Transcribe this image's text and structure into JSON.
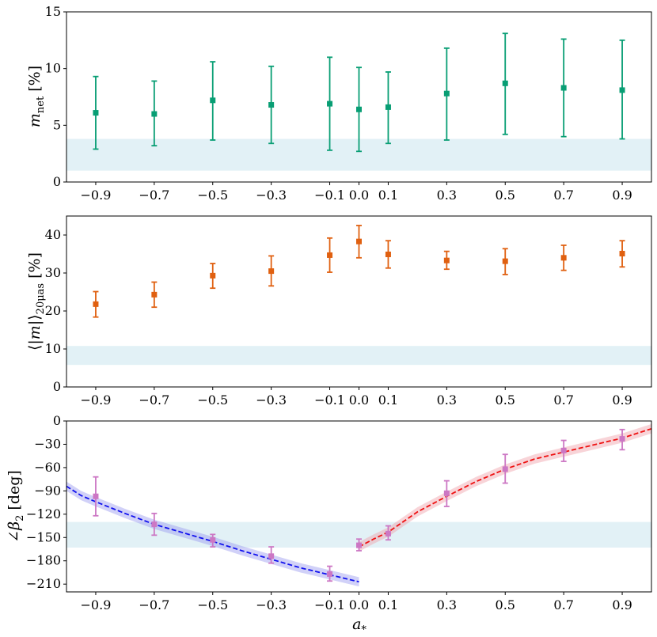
{
  "chart_data": [
    {
      "type": "scatter",
      "ylabel": "m_net [%]",
      "ylim": [
        0,
        15
      ],
      "xlim": [
        -1.0,
        1.0
      ],
      "yticks": [
        0,
        5,
        10,
        15
      ],
      "ytick_labels": [
        "0",
        "5",
        "10",
        "15"
      ],
      "band": [
        1.0,
        3.8
      ],
      "color": "#089e74",
      "series": [
        {
          "name": "m_net",
          "x": [
            -0.9,
            -0.7,
            -0.5,
            -0.3,
            -0.1,
            0.0,
            0.1,
            0.3,
            0.5,
            0.7,
            0.9
          ],
          "y": [
            6.1,
            6.0,
            7.2,
            6.8,
            6.9,
            6.4,
            6.6,
            7.8,
            8.7,
            8.3,
            8.1
          ],
          "err_low": [
            2.9,
            3.2,
            3.7,
            3.4,
            2.8,
            2.7,
            3.4,
            3.7,
            4.2,
            4.0,
            3.8
          ],
          "err_high": [
            9.3,
            8.9,
            10.6,
            10.2,
            11.0,
            10.1,
            9.7,
            11.8,
            13.1,
            12.6,
            12.5
          ]
        }
      ]
    },
    {
      "type": "scatter",
      "ylabel": "⟨|m|⟩20μas [%]",
      "ylim": [
        0,
        45
      ],
      "xlim": [
        -1.0,
        1.0
      ],
      "yticks": [
        0,
        10,
        20,
        30,
        40
      ],
      "ytick_labels": [
        "0",
        "10",
        "20",
        "30",
        "40"
      ],
      "band": [
        5.8,
        10.8
      ],
      "color": "#e06010",
      "series": [
        {
          "name": "<|m|>",
          "x": [
            -0.9,
            -0.7,
            -0.5,
            -0.3,
            -0.1,
            0.0,
            0.1,
            0.3,
            0.5,
            0.7,
            0.9
          ],
          "y": [
            21.8,
            24.3,
            29.3,
            30.5,
            34.7,
            38.3,
            34.9,
            33.3,
            33.1,
            34.0,
            35.1
          ],
          "err_low": [
            18.4,
            21.0,
            26.0,
            26.6,
            30.2,
            34.0,
            31.3,
            31.0,
            29.6,
            30.7,
            31.6
          ],
          "err_high": [
            25.1,
            27.6,
            32.5,
            34.5,
            39.2,
            42.5,
            38.5,
            35.7,
            36.4,
            37.3,
            38.5
          ]
        }
      ]
    },
    {
      "type": "scatter",
      "ylabel": "∠β2 [deg]",
      "xlabel": "a*",
      "ylim": [
        -220,
        0
      ],
      "xlim": [
        -1.0,
        1.0
      ],
      "yticks": [
        0,
        -30,
        -60,
        -90,
        -120,
        -150,
        -180,
        -210
      ],
      "ytick_labels": [
        "0",
        "−30",
        "−60",
        "−90",
        "−120",
        "−150",
        "−180",
        "−210"
      ],
      "band": [
        -163,
        -130
      ],
      "color": "#cc77c4",
      "series": [
        {
          "name": "angle beta2",
          "x": [
            -0.9,
            -0.7,
            -0.5,
            -0.3,
            -0.1,
            0.0,
            0.1,
            0.3,
            0.5,
            0.7,
            0.9
          ],
          "y": [
            -97,
            -133,
            -153,
            -174,
            -197,
            -160,
            -145,
            -93,
            -62,
            -38,
            -23
          ],
          "err_low": [
            -122,
            -147,
            -162,
            -183,
            -206,
            -167,
            -153,
            -110,
            -80,
            -52,
            -37
          ],
          "err_high": [
            -72,
            -119,
            -146,
            -162,
            -187,
            -152,
            -135,
            -77,
            -43,
            -25,
            -11
          ]
        },
        {
          "name": "fit negative spin",
          "style": "dashed",
          "color": "#1010ee",
          "band_color": "#9999f0",
          "x": [
            -1.0,
            -0.95,
            -0.9,
            -0.8,
            -0.7,
            -0.6,
            -0.5,
            -0.4,
            -0.3,
            -0.2,
            -0.1,
            0.0
          ],
          "y": [
            -84,
            -96,
            -104,
            -119,
            -133,
            -144,
            -155,
            -167,
            -178,
            -189,
            -198,
            -207
          ],
          "band_width": 6
        },
        {
          "name": "fit positive spin",
          "style": "dashed",
          "color": "#ee1111",
          "band_color": "#f0a0a8",
          "x": [
            0.0,
            0.05,
            0.1,
            0.2,
            0.3,
            0.4,
            0.5,
            0.6,
            0.7,
            0.8,
            0.9,
            1.0
          ],
          "y": [
            -162,
            -152,
            -143,
            -117,
            -97,
            -78,
            -62,
            -49,
            -40,
            -31,
            -22,
            -10
          ],
          "band_width": 6
        }
      ]
    }
  ],
  "x_ticks": [
    -0.9,
    -0.7,
    -0.5,
    -0.3,
    -0.1,
    0.0,
    0.1,
    0.3,
    0.5,
    0.7,
    0.9
  ],
  "x_tick_labels": [
    "−0.9",
    "−0.7",
    "−0.5",
    "−0.3",
    "−0.1",
    "0.0",
    "0.1",
    "0.3",
    "0.5",
    "0.7",
    "0.9"
  ]
}
